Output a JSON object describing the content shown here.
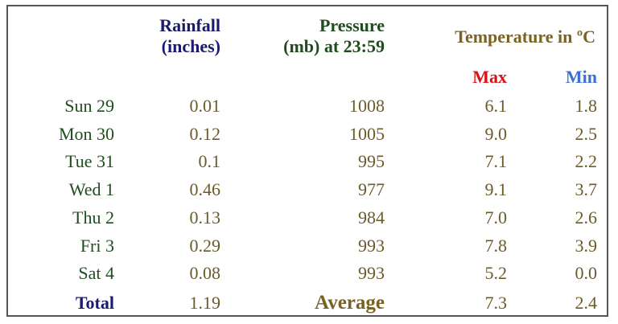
{
  "colors": {
    "navy": "#1a1a6e",
    "dark_green": "#1f4d1f",
    "olive": "#7a6320",
    "data_olive": "#6b5a2a",
    "red": "#dd1111",
    "blue": "#3a6fd8"
  },
  "headers": {
    "rainfall_line1": "Rainfall",
    "rainfall_line2": "(inches)",
    "pressure_line1": "Pressure",
    "pressure_line2": "(mb) at 23:59",
    "temperature": "Temperature in ºC",
    "max": "Max",
    "min": "Min"
  },
  "rows": [
    {
      "day": "Sun 29",
      "rain": "0.01",
      "pressure": "1008",
      "max": "6.1",
      "min": "1.8"
    },
    {
      "day": "Mon 30",
      "rain": "0.12",
      "pressure": "1005",
      "max": "9.0",
      "min": "2.5"
    },
    {
      "day": "Tue 31",
      "rain": "0.1",
      "pressure": "995",
      "max": "7.1",
      "min": "2.2"
    },
    {
      "day": "Wed 1",
      "rain": "0.46",
      "pressure": "977",
      "max": "9.1",
      "min": "3.7"
    },
    {
      "day": "Thu 2",
      "rain": "0.13",
      "pressure": "984",
      "max": "7.0",
      "min": "2.6"
    },
    {
      "day": "Fri 3",
      "rain": "0.29",
      "pressure": "993",
      "max": "7.8",
      "min": "3.9"
    },
    {
      "day": "Sat 4",
      "rain": "0.08",
      "pressure": "993",
      "max": "5.2",
      "min": "0.0"
    }
  ],
  "footer": {
    "total_label": "Total",
    "total_rain": "1.19",
    "average_label": "Average",
    "avg_max": "7.3",
    "avg_min": "2.4"
  }
}
